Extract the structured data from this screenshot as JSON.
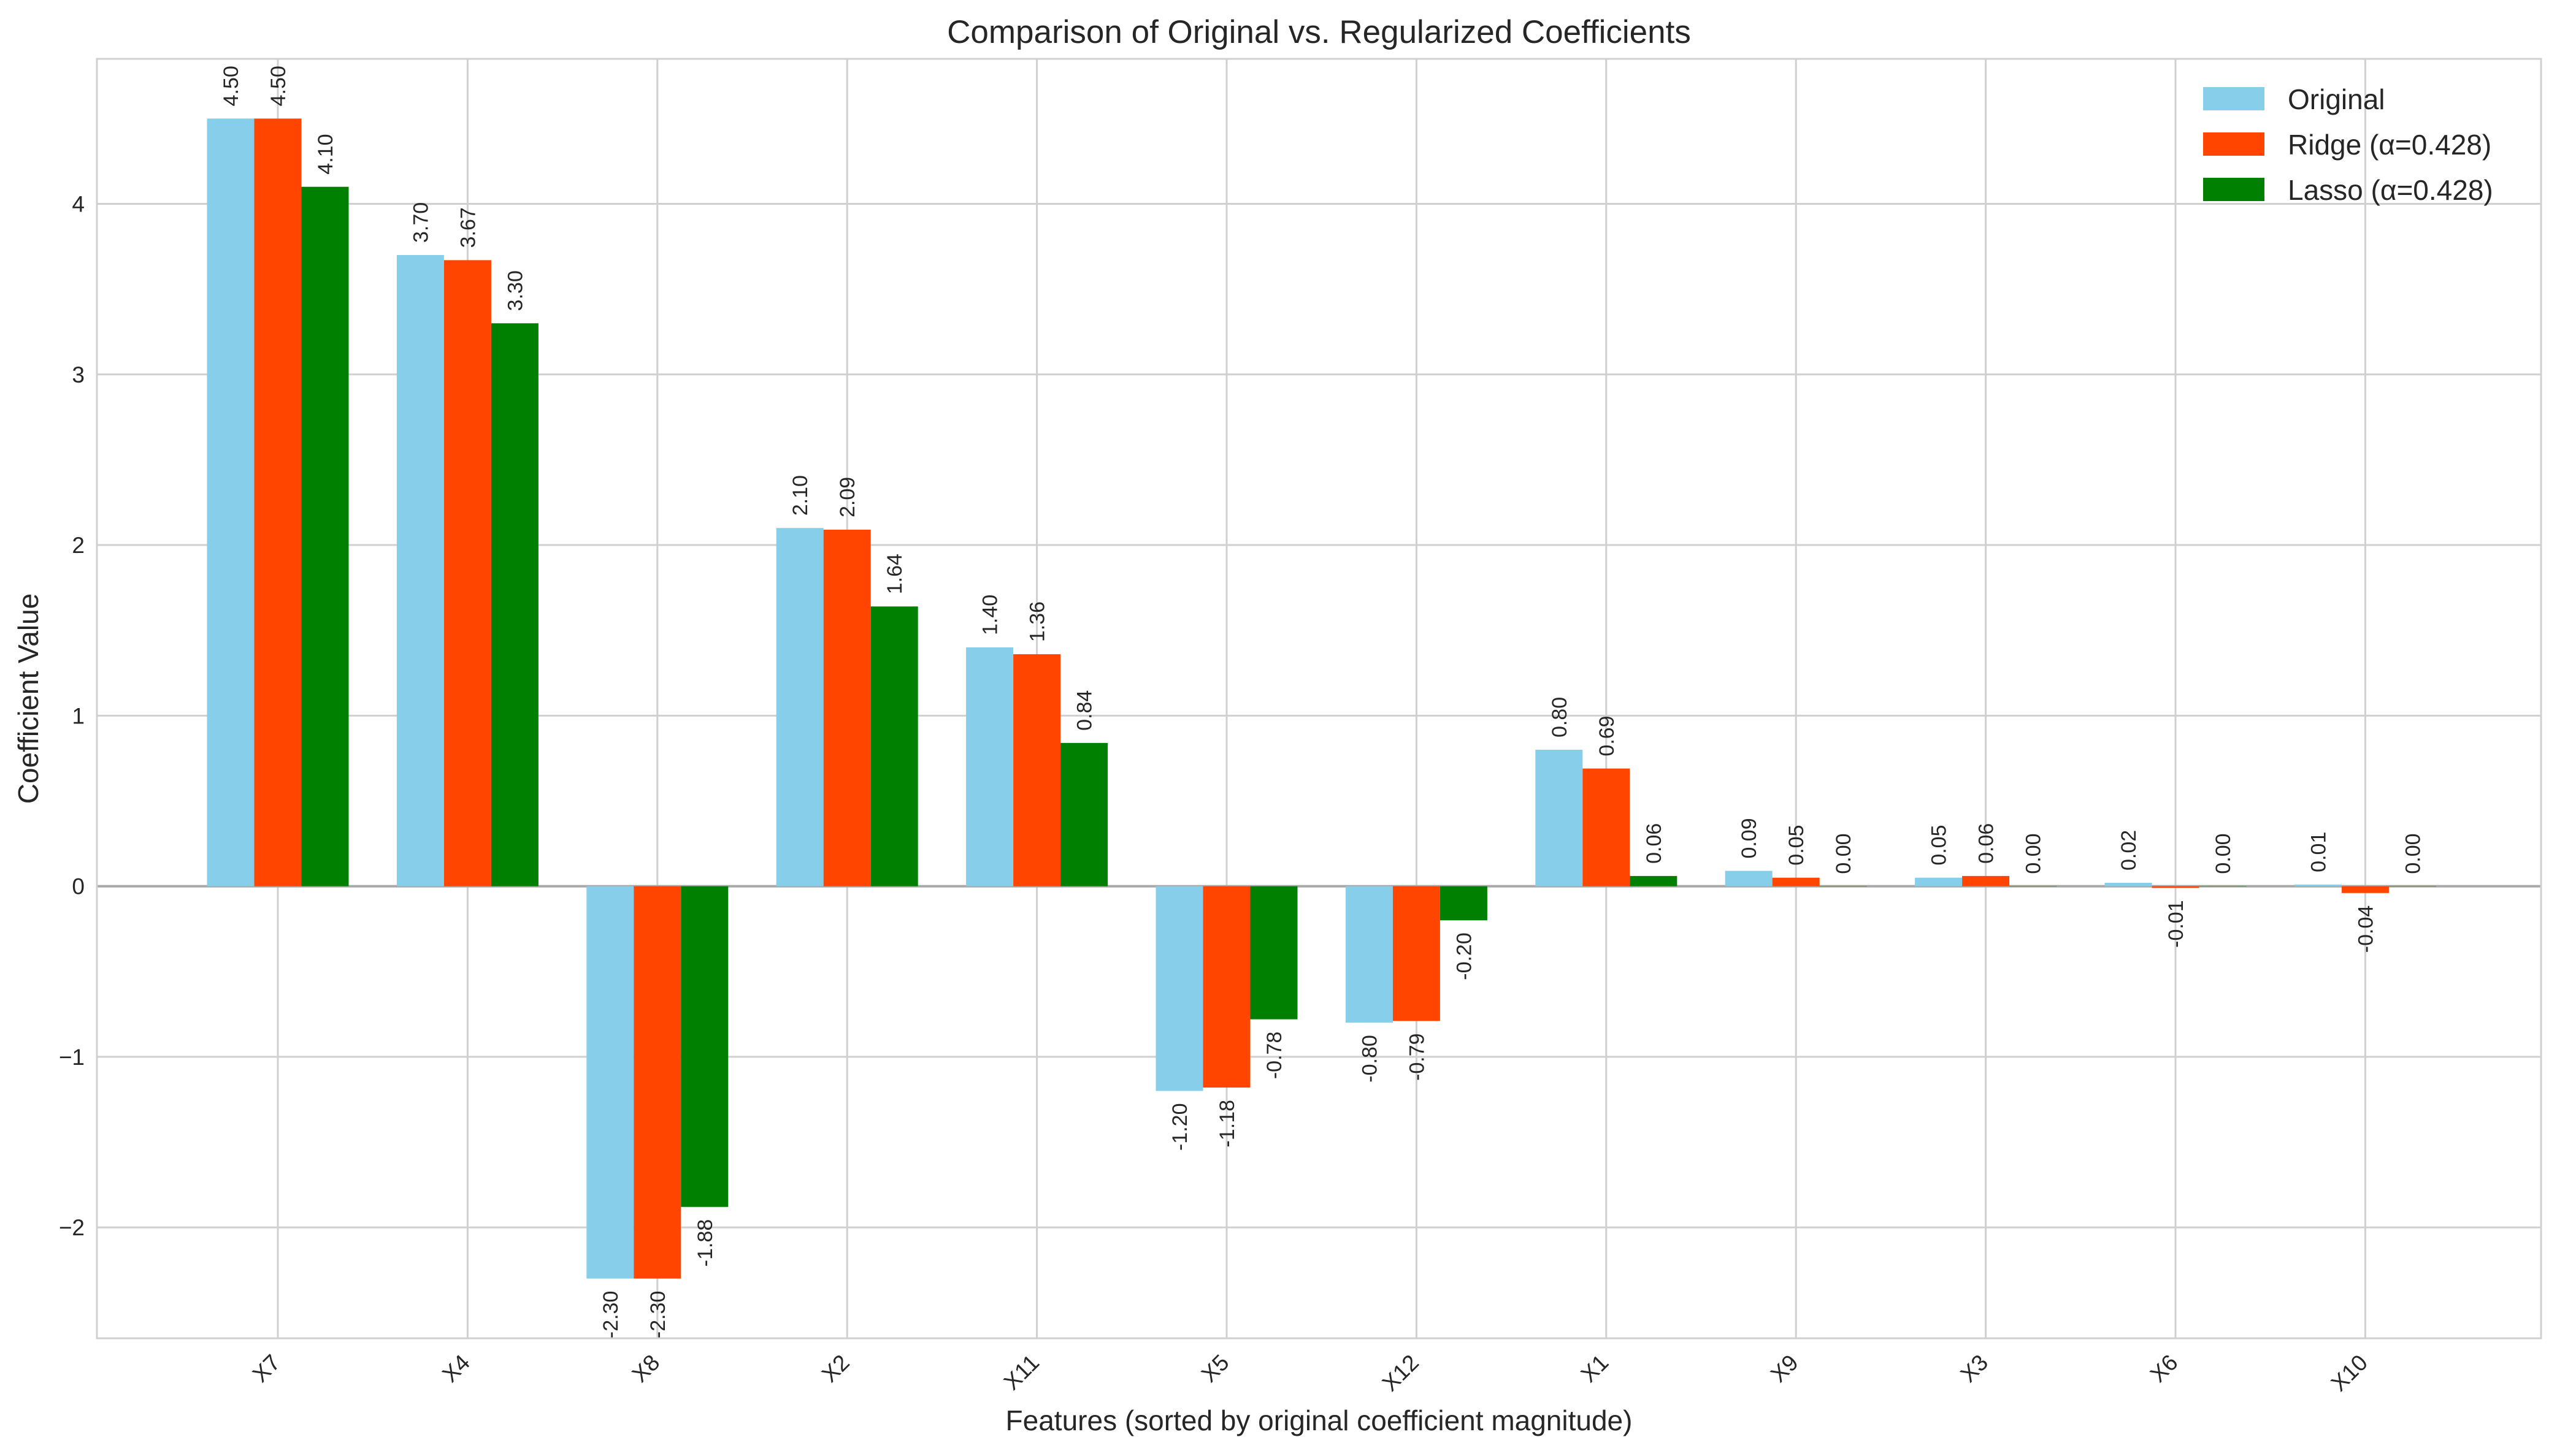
{
  "chart_data": {
    "type": "bar",
    "title": "Comparison of Original vs. Regularized Coefficients",
    "xlabel": "Features (sorted by original coefficient magnitude)",
    "ylabel": "Coefficient Value",
    "ylim": [
      -2.65,
      4.85
    ],
    "yticks": [
      -2,
      -1,
      0,
      1,
      2,
      3,
      4
    ],
    "ytick_labels": [
      "−2",
      "−1",
      "0",
      "1",
      "2",
      "3",
      "4"
    ],
    "grid": true,
    "legend_position": "top-right",
    "categories": [
      "X7",
      "X4",
      "X8",
      "X2",
      "X11",
      "X5",
      "X12",
      "X1",
      "X9",
      "X3",
      "X6",
      "X10"
    ],
    "series": [
      {
        "name": "Original",
        "color": "#87CEEB",
        "values": [
          4.5,
          3.7,
          -2.3,
          2.1,
          1.4,
          -1.2,
          -0.8,
          0.8,
          0.09,
          0.05,
          0.02,
          0.01
        ],
        "labels": [
          "4.50",
          "3.70",
          "-2.30",
          "2.10",
          "1.40",
          "-1.20",
          "-0.80",
          "0.80",
          "0.09",
          "0.05",
          "0.02",
          "0.01"
        ]
      },
      {
        "name": "Ridge (α=0.428)",
        "color": "#FF4500",
        "values": [
          4.5,
          3.67,
          -2.3,
          2.09,
          1.36,
          -1.18,
          -0.79,
          0.69,
          0.05,
          0.06,
          -0.01,
          -0.04
        ],
        "labels": [
          "4.50",
          "3.67",
          "-2.30",
          "2.09",
          "1.36",
          "-1.18",
          "-0.79",
          "0.69",
          "0.05",
          "0.06",
          "-0.01",
          "-0.04"
        ]
      },
      {
        "name": "Lasso (α=0.428)",
        "color": "#008000",
        "values": [
          4.1,
          3.3,
          -1.88,
          1.64,
          0.84,
          -0.78,
          -0.2,
          0.06,
          0.0,
          0.0,
          0.0,
          0.0
        ],
        "labels": [
          "4.10",
          "3.30",
          "-1.88",
          "1.64",
          "0.84",
          "-0.78",
          "-0.20",
          "0.06",
          "0.00",
          "0.00",
          "0.00",
          "0.00"
        ]
      }
    ]
  }
}
